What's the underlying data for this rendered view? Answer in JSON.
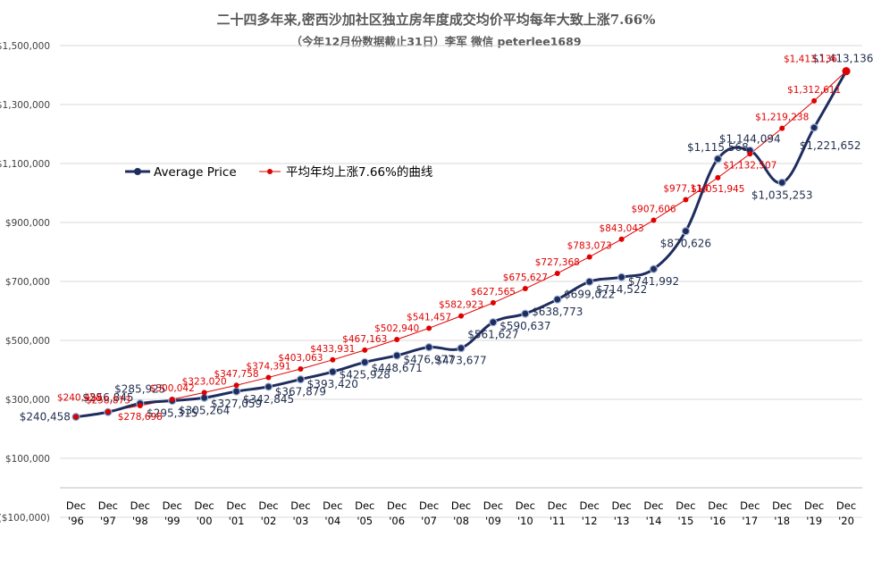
{
  "chart_data": {
    "type": "line",
    "title": "二十四多年来,密西沙加社区独立房年度成交均价平均每年大致上涨7.66%",
    "subtitle": "（今年12月份数据截止31日）李军 微信 peterlee1689",
    "x": [
      "Dec '96",
      "Dec '97",
      "Dec '98",
      "Dec '99",
      "Dec '00",
      "Dec '01",
      "Dec '02",
      "Dec '03",
      "Dec '04",
      "Dec '05",
      "Dec '06",
      "Dec '07",
      "Dec '08",
      "Dec '09",
      "Dec '10",
      "Dec '11",
      "Dec '12",
      "Dec '13",
      "Dec '14",
      "Dec '15",
      "Dec '16",
      "Dec '17",
      "Dec '18",
      "Dec '19",
      "Dec '20"
    ],
    "x_top": [
      "Dec",
      "Dec",
      "Dec",
      "Dec",
      "Dec",
      "Dec",
      "Dec",
      "Dec",
      "Dec",
      "Dec",
      "Dec",
      "Dec",
      "Dec",
      "Dec",
      "Dec",
      "Dec",
      "Dec",
      "Dec",
      "Dec",
      "Dec",
      "Dec",
      "Dec",
      "Dec",
      "Dec",
      "Dec"
    ],
    "x_bottom": [
      "'96",
      "'97",
      "'98",
      "'99",
      "'00",
      "'01",
      "'02",
      "'03",
      "'04",
      "'05",
      "'06",
      "'07",
      "'08",
      "'09",
      "'10",
      "'11",
      "'12",
      "'13",
      "'14",
      "'15",
      "'16",
      "'17",
      "'18",
      "'19",
      "'20"
    ],
    "ylim": [
      -100000,
      1500000
    ],
    "yticks": [
      -100000,
      100000,
      300000,
      500000,
      700000,
      900000,
      1100000,
      1300000,
      1500000
    ],
    "ytick_labels": [
      "($100,000)",
      "$100,000",
      "$300,000",
      "$500,000",
      "$700,000",
      "$900,000",
      "$1,100,000",
      "$1,300,000",
      "$1,500,000"
    ],
    "grid": true,
    "legend_position": "left-middle",
    "series": [
      {
        "name": "Average Price",
        "color": "#1f2d5e",
        "values": [
          240458,
          256845,
          285925,
          295315,
          305264,
          327059,
          342845,
          367879,
          393420,
          425928,
          448671,
          476977,
          473677,
          561627,
          590637,
          638773,
          699022,
          714522,
          741992,
          870626,
          1115568,
          1144094,
          1035253,
          1221652,
          1413136
        ],
        "labels": [
          "$240,458",
          "$256,845",
          "$285,925",
          "$295,315",
          "$305,264",
          "$327,059",
          "$342,845",
          "$367,879",
          "$393,420",
          "$425,928",
          "$448,671",
          "$476,977",
          "$473,677",
          "$561,627",
          "$590,637",
          "$638,773",
          "$699,022",
          "$714,522",
          "$741,992",
          "$870,626",
          "$1,115,568",
          "$1,144,094",
          "$1,035,253",
          "$1,221,652",
          "$1,413,136"
        ]
      },
      {
        "name": "平均年均上涨7.66%的曲线",
        "color": "#e00000",
        "values": [
          240458,
          258873,
          278698,
          300042,
          323020,
          347758,
          374391,
          403063,
          433931,
          467163,
          502940,
          541457,
          582923,
          627565,
          675627,
          727368,
          783073,
          843043,
          907606,
          977114,
          1051945,
          1132507,
          1219238,
          1312611,
          1413136
        ],
        "labels": [
          "$240,458",
          "$258,873",
          "$278,698",
          "$300,042",
          "$323,020",
          "$347,758",
          "$374,391",
          "$403,063",
          "$433,931",
          "$467,163",
          "$502,940",
          "$541,457",
          "$582,923",
          "$627,565",
          "$675,627",
          "$727,368",
          "$783,073",
          "$843,043",
          "$907,606",
          "$977,114",
          "$1,051,945",
          "$1,132,507",
          "$1,219,238",
          "$1,312,611",
          "$1,413,136"
        ]
      }
    ]
  }
}
